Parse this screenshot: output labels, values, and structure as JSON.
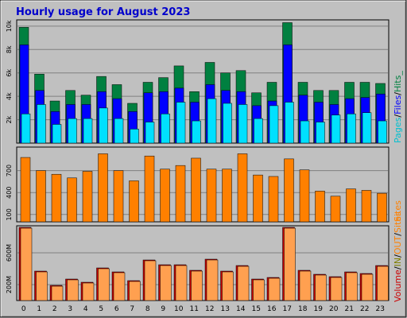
{
  "title": "Hourly usage for August 2023",
  "colors": {
    "background": "#c0c0c0",
    "title": "#0000cc",
    "hits": "#008040",
    "files": "#0000ff",
    "pages": "#00e0ff",
    "sites": "#ff8000",
    "volume_in": "#cc0000",
    "volume_out": "#ffa050",
    "grid": "#808080"
  },
  "chart_data": [
    {
      "type": "bar",
      "panel": "usage",
      "categories": [
        "0",
        "1",
        "2",
        "3",
        "4",
        "5",
        "6",
        "7",
        "8",
        "9",
        "10",
        "11",
        "12",
        "13",
        "14",
        "15",
        "16",
        "17",
        "18",
        "19",
        "20",
        "21",
        "22",
        "23"
      ],
      "ylim": [
        0,
        10400
      ],
      "yticks": [
        2000,
        4000,
        6000,
        8000,
        10000
      ],
      "ytick_labels": [
        "2k",
        "4k",
        "6k",
        "8k",
        "10k"
      ],
      "series": [
        {
          "name": "Hits",
          "values": [
            9900,
            5900,
            3600,
            4500,
            4100,
            5700,
            5000,
            3400,
            5200,
            5600,
            6600,
            4400,
            6900,
            6000,
            6200,
            4300,
            5200,
            10300,
            5200,
            4500,
            4500,
            5200,
            5200,
            5100
          ]
        },
        {
          "name": "Files",
          "values": [
            8400,
            4500,
            2700,
            3300,
            3300,
            4400,
            3800,
            2700,
            4300,
            4400,
            4700,
            3500,
            5000,
            4500,
            4400,
            3200,
            3600,
            8400,
            4100,
            3500,
            3300,
            3800,
            3900,
            4200
          ]
        },
        {
          "name": "Pages",
          "values": [
            2500,
            3300,
            1600,
            2100,
            2100,
            3000,
            2100,
            1200,
            1800,
            2500,
            3500,
            1900,
            3800,
            3400,
            3300,
            2100,
            3200,
            3500,
            1900,
            1800,
            2400,
            2500,
            2600,
            1900
          ]
        }
      ],
      "legend": "Pages/Files/Hits"
    },
    {
      "type": "bar",
      "panel": "sites",
      "categories": [
        "0",
        "1",
        "2",
        "3",
        "4",
        "5",
        "6",
        "7",
        "8",
        "9",
        "10",
        "11",
        "12",
        "13",
        "14",
        "15",
        "16",
        "17",
        "18",
        "19",
        "20",
        "21",
        "22",
        "23"
      ],
      "ylim": [
        0,
        1000
      ],
      "yticks": [
        100,
        400,
        700
      ],
      "ytick_labels": [
        "100",
        "400",
        "700"
      ],
      "series": [
        {
          "name": "Sites",
          "values": [
            880,
            700,
            650,
            600,
            690,
            930,
            700,
            560,
            900,
            720,
            770,
            870,
            720,
            720,
            930,
            640,
            620,
            860,
            710,
            420,
            350,
            450,
            430,
            390
          ]
        }
      ],
      "legend": "Sites"
    },
    {
      "type": "bar",
      "panel": "volume",
      "categories": [
        "0",
        "1",
        "2",
        "3",
        "4",
        "5",
        "6",
        "7",
        "8",
        "9",
        "10",
        "11",
        "12",
        "13",
        "14",
        "15",
        "16",
        "17",
        "18",
        "19",
        "20",
        "21",
        "22",
        "23"
      ],
      "ylim": [
        0,
        920
      ],
      "yticks": [
        200,
        600
      ],
      "ytick_labels": [
        "200M",
        "600M"
      ],
      "series": [
        {
          "name": "Volume (IN)",
          "values": [
            920,
            370,
            190,
            270,
            230,
            410,
            360,
            250,
            510,
            450,
            450,
            380,
            520,
            370,
            440,
            270,
            290,
            920,
            380,
            330,
            300,
            360,
            340,
            440
          ]
        },
        {
          "name": "Volume (OUT)",
          "values": [
            920,
            370,
            190,
            270,
            230,
            410,
            360,
            250,
            510,
            450,
            450,
            380,
            520,
            370,
            440,
            270,
            290,
            920,
            380,
            330,
            300,
            360,
            340,
            440
          ]
        }
      ],
      "legend": "Volume/IN/OUT/Sites"
    }
  ],
  "legend_labels": {
    "pages": "Pages",
    "slash1": "/",
    "files": "Files",
    "slash2": "/",
    "hits": "Hits_",
    "volume": "Volume",
    "slash3": "/",
    "in": "IN",
    "slash4": "/",
    "out": "OUT",
    "slash5": "/",
    "sites": "Sites"
  }
}
